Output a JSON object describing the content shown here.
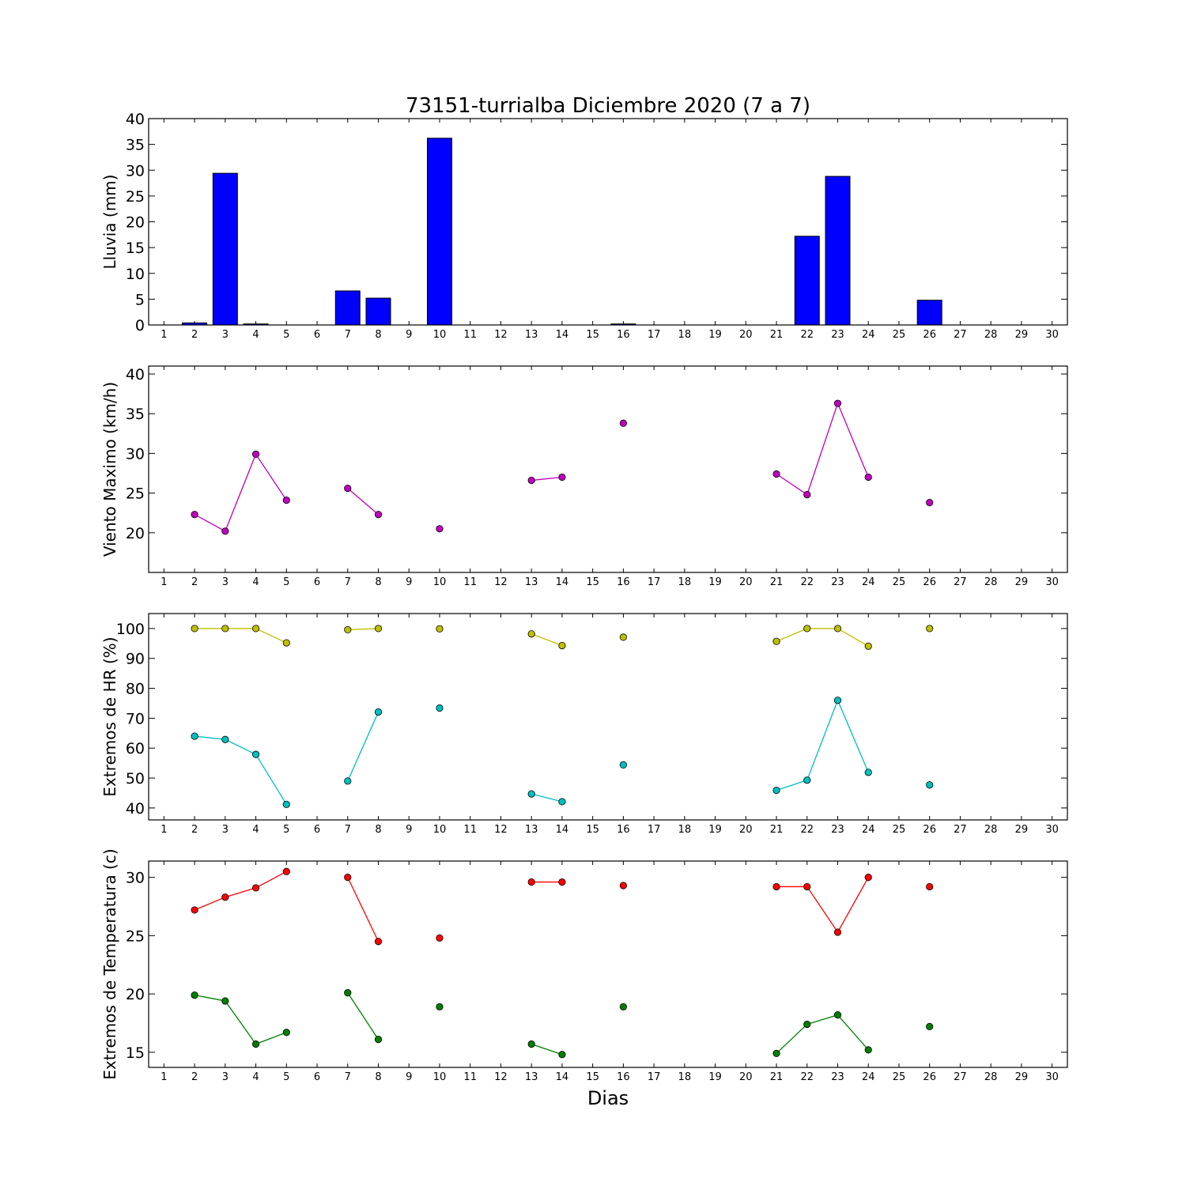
{
  "figure": {
    "title": "73151-turrialba Diciembre 2020  (7 a 7)",
    "xlabel": "Dias"
  },
  "chart_data": [
    {
      "type": "bar",
      "ylabel": "Lluvia (mm)",
      "ylim": [
        0,
        40
      ],
      "yticks": [
        0,
        5,
        10,
        15,
        20,
        25,
        30,
        35,
        40
      ],
      "xlim": [
        0.5,
        30.5
      ],
      "xticks": [
        1,
        2,
        3,
        4,
        5,
        6,
        7,
        8,
        9,
        10,
        11,
        12,
        13,
        14,
        15,
        16,
        17,
        18,
        19,
        20,
        21,
        22,
        23,
        24,
        25,
        26,
        27,
        28,
        29,
        30
      ],
      "color": "#0000ff",
      "x": [
        2,
        3,
        4,
        7,
        8,
        10,
        13,
        14,
        16,
        17,
        21,
        22,
        23,
        24,
        26
      ],
      "values": [
        0.4,
        29.4,
        0.2,
        6.6,
        5.2,
        36.2,
        0,
        0,
        0.2,
        0,
        0,
        17.2,
        28.8,
        0,
        4.8
      ]
    },
    {
      "type": "line",
      "ylabel": "Viento Maximo (km/h)",
      "ylim": [
        15,
        41
      ],
      "yticks": [
        20,
        25,
        30,
        35,
        40
      ],
      "xlim": [
        0.5,
        30.5
      ],
      "xticks": [
        1,
        2,
        3,
        4,
        5,
        6,
        7,
        8,
        9,
        10,
        11,
        12,
        13,
        14,
        15,
        16,
        17,
        18,
        19,
        20,
        21,
        22,
        23,
        24,
        25,
        26,
        27,
        28,
        29,
        30
      ],
      "series": [
        {
          "color": "#bf00bf",
          "x": [
            2,
            3,
            4,
            5,
            6,
            7,
            8,
            9,
            10,
            11,
            12,
            13,
            14,
            15,
            16,
            17,
            18,
            19,
            20,
            21,
            22,
            23,
            24,
            25,
            26
          ],
          "y": [
            22.3,
            20.2,
            29.9,
            24.1,
            null,
            25.6,
            22.3,
            null,
            20.5,
            null,
            null,
            26.6,
            27.0,
            null,
            33.8,
            null,
            null,
            null,
            null,
            27.4,
            24.8,
            36.3,
            27.0,
            null,
            23.8
          ]
        }
      ]
    },
    {
      "type": "line",
      "ylabel": "Extremos de HR (%)",
      "ylim": [
        36,
        105
      ],
      "yticks": [
        40,
        50,
        60,
        70,
        80,
        90,
        100
      ],
      "xlim": [
        0.5,
        30.5
      ],
      "xticks": [
        1,
        2,
        3,
        4,
        5,
        6,
        7,
        8,
        9,
        10,
        11,
        12,
        13,
        14,
        15,
        16,
        17,
        18,
        19,
        20,
        21,
        22,
        23,
        24,
        25,
        26,
        27,
        28,
        29,
        30
      ],
      "series": [
        {
          "color": "#bfbf00",
          "x": [
            2,
            3,
            4,
            5,
            6,
            7,
            8,
            9,
            10,
            11,
            12,
            13,
            14,
            15,
            16,
            17,
            18,
            19,
            20,
            21,
            22,
            23,
            24,
            25,
            26
          ],
          "y": [
            100,
            100,
            100,
            95.2,
            null,
            99.6,
            100,
            null,
            99.9,
            null,
            null,
            98.2,
            94.3,
            null,
            97.1,
            null,
            null,
            null,
            null,
            95.7,
            100,
            100,
            94.1,
            null,
            100
          ]
        },
        {
          "color": "#00bfbf",
          "x": [
            2,
            3,
            4,
            5,
            6,
            7,
            8,
            9,
            10,
            11,
            12,
            13,
            14,
            15,
            16,
            17,
            18,
            19,
            20,
            21,
            22,
            23,
            24,
            25,
            26
          ],
          "y": [
            64,
            62.9,
            57.9,
            41.2,
            null,
            49,
            72.1,
            null,
            73.4,
            null,
            null,
            44.7,
            42.1,
            null,
            54.4,
            null,
            null,
            null,
            null,
            45.9,
            49.3,
            76,
            51.9,
            null,
            47.7
          ]
        }
      ]
    },
    {
      "type": "line",
      "ylabel": "Extremos de Temperatura (c)",
      "ylim": [
        13.7,
        31.4
      ],
      "yticks": [
        15,
        20,
        25,
        30
      ],
      "xlim": [
        0.5,
        30.5
      ],
      "xticks": [
        1,
        2,
        3,
        4,
        5,
        6,
        7,
        8,
        9,
        10,
        11,
        12,
        13,
        14,
        15,
        16,
        17,
        18,
        19,
        20,
        21,
        22,
        23,
        24,
        25,
        26,
        27,
        28,
        29,
        30
      ],
      "series": [
        {
          "color": "#ff0000",
          "x": [
            2,
            3,
            4,
            5,
            6,
            7,
            8,
            9,
            10,
            11,
            12,
            13,
            14,
            15,
            16,
            17,
            18,
            19,
            20,
            21,
            22,
            23,
            24,
            25,
            26
          ],
          "y": [
            27.2,
            28.3,
            29.1,
            30.5,
            null,
            30.0,
            24.5,
            null,
            24.8,
            null,
            null,
            29.6,
            29.6,
            null,
            29.3,
            null,
            null,
            null,
            null,
            29.2,
            29.2,
            25.3,
            30.0,
            null,
            29.2
          ]
        },
        {
          "color": "#007f00",
          "x": [
            2,
            3,
            4,
            5,
            6,
            7,
            8,
            9,
            10,
            11,
            12,
            13,
            14,
            15,
            16,
            17,
            18,
            19,
            20,
            21,
            22,
            23,
            24,
            25,
            26
          ],
          "y": [
            19.9,
            19.4,
            15.7,
            16.7,
            null,
            20.1,
            16.1,
            null,
            18.9,
            null,
            null,
            15.7,
            14.8,
            null,
            18.9,
            null,
            null,
            null,
            null,
            14.9,
            17.4,
            18.2,
            15.2,
            null,
            17.2
          ]
        }
      ]
    }
  ]
}
